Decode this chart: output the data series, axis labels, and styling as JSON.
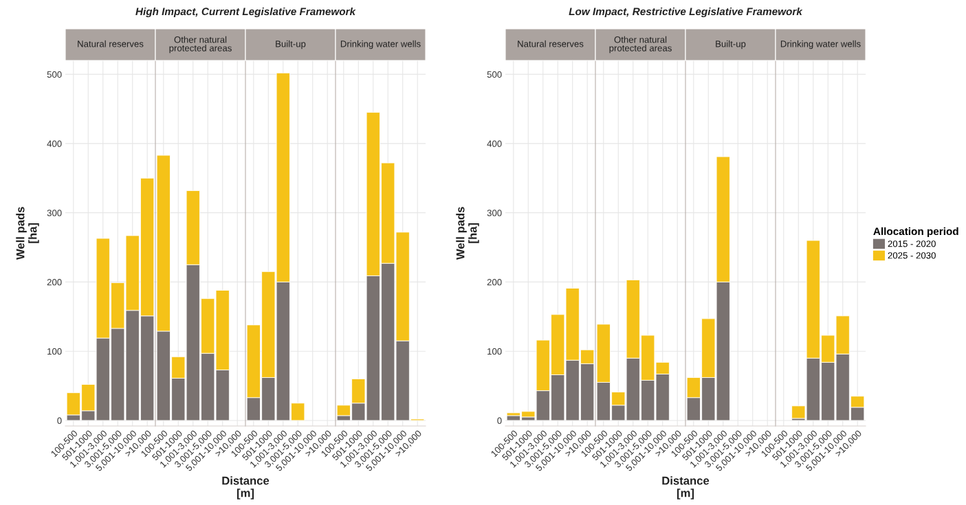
{
  "chart_data": [
    {
      "type": "bar",
      "stacked": true,
      "title": "High Impact, Current Legislative Framework",
      "subtitle": "Natural reserves",
      "ylabel": "Well pads\n[ha]",
      "xlabel": "Distance\n[m]",
      "categories": [
        "100-500",
        "501-1000",
        "1,001-3,000",
        "3,001-5,000",
        "5,001-10,000",
        ">10,000"
      ],
      "ylim": [
        -8,
        520
      ],
      "yticks": [
        0,
        100,
        200,
        300,
        400,
        500
      ],
      "grid": true,
      "series": [
        {
          "color": "#7a7270",
          "values": [
            8,
            14,
            119,
            133,
            159,
            151
          ]
        },
        {
          "color": "#f5c218",
          "values": [
            32,
            38,
            144,
            66,
            108,
            199
          ]
        }
      ]
    },
    {
      "type": "bar",
      "stacked": true,
      "subtitle": "Other natural\nprotected areas",
      "categories": [
        "100-500",
        "501-1000",
        "1,001-3,000",
        "3,001-5,000",
        "5,001-10,000",
        ">10,000"
      ],
      "ylim": [
        -8,
        520
      ],
      "yticks": [
        0,
        100,
        200,
        300,
        400,
        500
      ],
      "grid": true,
      "tick_labels": "x",
      "series": [
        {
          "color": "#7a7270",
          "values": [
            129,
            61,
            225,
            97,
            73,
            0
          ]
        },
        {
          "color": "#f5c218",
          "values": [
            254,
            31,
            107,
            79,
            115,
            0
          ]
        }
      ]
    },
    {
      "type": "bar",
      "stacked": true,
      "subtitle": "Built-up",
      "categories": [
        "100-500",
        "501-1000",
        "1,001-3,000",
        "3,001-5,000",
        "5,001-10,000",
        ">10,000"
      ],
      "ylim": [
        -8,
        520
      ],
      "yticks": [
        0,
        100,
        200,
        300,
        400,
        500
      ],
      "grid": true,
      "tick_labels": "x",
      "series": [
        {
          "color": "#7a7270",
          "values": [
            33,
            62,
            200,
            0,
            0,
            0
          ]
        },
        {
          "color": "#f5c218",
          "values": [
            105,
            153,
            302,
            25,
            0,
            0
          ]
        }
      ]
    },
    {
      "type": "bar",
      "stacked": true,
      "subtitle": "Drinking water wells",
      "categories": [
        "100-500",
        "501-1000",
        "1,001-3,000",
        "3,001-5,000",
        "5,001-10,000",
        ">10,000"
      ],
      "ylim": [
        -8,
        520
      ],
      "yticks": [
        0,
        100,
        200,
        300,
        400,
        500
      ],
      "grid": true,
      "tick_labels": "x",
      "series": [
        {
          "color": "#7a7270",
          "values": [
            7,
            25,
            209,
            227,
            115,
            0
          ]
        },
        {
          "color": "#f5c218",
          "values": [
            15,
            35,
            236,
            145,
            157,
            2
          ]
        }
      ]
    },
    {
      "type": "bar",
      "stacked": true,
      "title": "Low Impact, Restrictive Legislative Framework",
      "subtitle": "Natural reserves",
      "ylabel": "Well pads\n[ha]",
      "xlabel": "Distance\n[m]",
      "categories": [
        "100-500",
        "501-1000",
        "1,001-3,000",
        "3,001-5,000",
        "5,001-10,000",
        ">10,000"
      ],
      "ylim": [
        -8,
        520
      ],
      "yticks": [
        0,
        100,
        200,
        300,
        400,
        500
      ],
      "grid": true,
      "series": [
        {
          "color": "#7a7270",
          "values": [
            7,
            5,
            43,
            66,
            87,
            82
          ]
        },
        {
          "color": "#f5c218",
          "values": [
            4,
            8,
            73,
            87,
            104,
            20
          ]
        }
      ]
    },
    {
      "type": "bar",
      "stacked": true,
      "subtitle": "Other natural\nprotected areas",
      "categories": [
        "100-500",
        "501-1000",
        "1,001-3,000",
        "3,001-5,000",
        "5,001-10,000",
        ">10,000"
      ],
      "ylim": [
        -8,
        520
      ],
      "yticks": [
        0,
        100,
        200,
        300,
        400,
        500
      ],
      "grid": true,
      "tick_labels": "x",
      "series": [
        {
          "color": "#7a7270",
          "values": [
            55,
            22,
            90,
            58,
            67,
            0
          ]
        },
        {
          "color": "#f5c218",
          "values": [
            84,
            19,
            113,
            65,
            17,
            0
          ]
        }
      ]
    },
    {
      "type": "bar",
      "stacked": true,
      "subtitle": "Built-up",
      "categories": [
        "100-500",
        "501-1000",
        "1,001-3,000",
        "3,001-5,000",
        "5,001-10,000",
        ">10,000"
      ],
      "ylim": [
        -8,
        520
      ],
      "yticks": [
        0,
        100,
        200,
        300,
        400,
        500
      ],
      "grid": true,
      "tick_labels": "x",
      "series": [
        {
          "color": "#7a7270",
          "values": [
            33,
            62,
            200,
            0,
            0,
            0
          ]
        },
        {
          "color": "#f5c218",
          "values": [
            29,
            85,
            181,
            0,
            0,
            0
          ]
        }
      ]
    },
    {
      "type": "bar",
      "stacked": true,
      "subtitle": "Drinking water wells",
      "categories": [
        "100-500",
        "501-1000",
        "1,001-3,000",
        "3,001-5,000",
        "5,001-10,000",
        ">10,000"
      ],
      "ylim": [
        -8,
        520
      ],
      "yticks": [
        0,
        100,
        200,
        300,
        400,
        500
      ],
      "grid": true,
      "legend": "right",
      "legend_title": "Allocation period",
      "tick_labels": "x",
      "series": [
        {
          "name": "2015 - 2020",
          "color": "#7a7270",
          "values": [
            0,
            3,
            90,
            84,
            96,
            19
          ]
        },
        {
          "name": "2025 - 2030",
          "color": "#f5c218",
          "values": [
            0,
            18,
            170,
            39,
            55,
            16
          ]
        }
      ]
    }
  ]
}
